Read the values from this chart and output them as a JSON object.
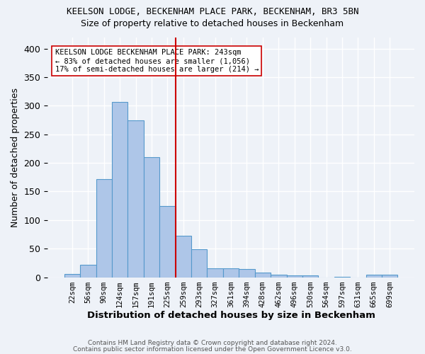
{
  "title": "KEELSON LODGE, BECKENHAM PLACE PARK, BECKENHAM, BR3 5BN",
  "subtitle": "Size of property relative to detached houses in Beckenham",
  "xlabel": "Distribution of detached houses by size in Beckenham",
  "ylabel": "Number of detached properties",
  "bar_labels": [
    "22sqm",
    "56sqm",
    "90sqm",
    "124sqm",
    "157sqm",
    "191sqm",
    "225sqm",
    "259sqm",
    "293sqm",
    "327sqm",
    "361sqm",
    "394sqm",
    "428sqm",
    "462sqm",
    "496sqm",
    "530sqm",
    "564sqm",
    "597sqm",
    "631sqm",
    "665sqm",
    "699sqm"
  ],
  "bar_values": [
    6,
    22,
    172,
    307,
    275,
    210,
    125,
    72,
    49,
    15,
    15,
    14,
    8,
    4,
    3,
    3,
    0,
    1,
    0,
    4,
    4
  ],
  "bar_color": "#aec6e8",
  "bar_edge_color": "#5599cc",
  "vline_x_index": 7,
  "vline_color": "#cc0000",
  "annotation_text": "KEELSON LODGE BECKENHAM PLACE PARK: 243sqm\n← 83% of detached houses are smaller (1,056)\n17% of semi-detached houses are larger (214) →",
  "annotation_box_color": "#ffffff",
  "annotation_box_edge": "#cc0000",
  "ylim": [
    0,
    420
  ],
  "yticks": [
    0,
    50,
    100,
    150,
    200,
    250,
    300,
    350,
    400
  ],
  "background_color": "#eef2f8",
  "grid_color": "#ffffff",
  "footer1": "Contains HM Land Registry data © Crown copyright and database right 2024.",
  "footer2": "Contains public sector information licensed under the Open Government Licence v3.0."
}
